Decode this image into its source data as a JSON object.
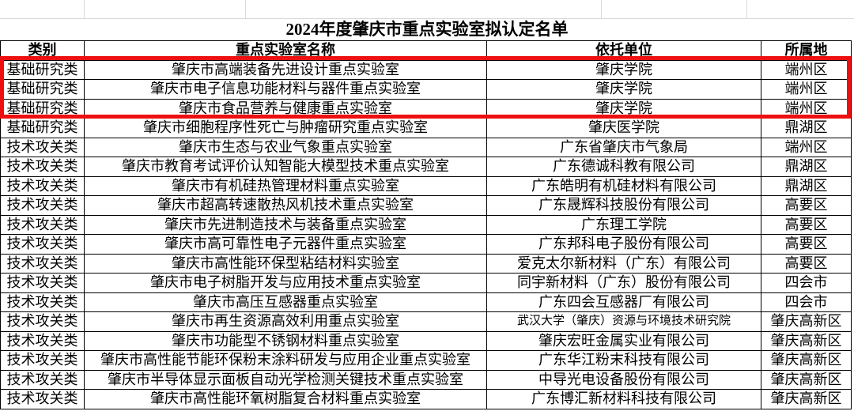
{
  "title": "2024年度肇庆市重点实验室拟认定名单",
  "columns": [
    "类别",
    "重点实验室名称",
    "依托单位",
    "所属地"
  ],
  "rows": [
    {
      "category": "基础研究类",
      "name": "肇庆市高端装备先进设计重点实验室",
      "unit": "肇庆学院",
      "location": "端州区"
    },
    {
      "category": "基础研究类",
      "name": "肇庆市电子信息功能材料与器件重点实验室",
      "unit": "肇庆学院",
      "location": "端州区"
    },
    {
      "category": "基础研究类",
      "name": "肇庆市食品营养与健康重点实验室",
      "unit": "肇庆学院",
      "location": "端州区"
    },
    {
      "category": "基础研究类",
      "name": "肇庆市细胞程序性死亡与肿瘤研究重点实验室",
      "unit": "肇庆医学院",
      "location": "鼎湖区"
    },
    {
      "category": "技术攻关类",
      "name": "肇庆市生态与农业气象重点实验室",
      "unit": "广东省肇庆市气象局",
      "location": "端州区"
    },
    {
      "category": "技术攻关类",
      "name": "肇庆市教育考试评价认知智能大模型技术重点实验室",
      "unit": "广东德诚科教有限公司",
      "location": "鼎湖区"
    },
    {
      "category": "技术攻关类",
      "name": "肇庆市有机硅热管理材料重点实验室",
      "unit": "广东皓明有机硅材料有限公司",
      "location": "鼎湖区"
    },
    {
      "category": "技术攻关类",
      "name": "肇庆市超高转速散热风机技术重点实验室",
      "unit": "广东晟辉科技股份有限公司",
      "location": "高要区"
    },
    {
      "category": "技术攻关类",
      "name": "肇庆市先进制造技术与装备重点实验室",
      "unit": "广东理工学院",
      "location": "高要区"
    },
    {
      "category": "技术攻关类",
      "name": "肇庆市高可靠性电子元器件重点实验室",
      "unit": "广东邦科电子股份有限公司",
      "location": "高要区"
    },
    {
      "category": "技术攻关类",
      "name": "肇庆市高性能环保型粘结材料实验室",
      "unit": "爱克太尔新材料（广东）有限公司",
      "location": "高要区"
    },
    {
      "category": "技术攻关类",
      "name": "肇庆市电子树脂开发与应用技术重点实验室",
      "unit": "同宇新材料（广东）股份有限公司",
      "location": "四会市"
    },
    {
      "category": "技术攻关类",
      "name": "肇庆市高压互感器重点实验室",
      "unit": "广东四会互感器厂有限公司",
      "location": "四会市"
    },
    {
      "category": "技术攻关类",
      "name": "肇庆市再生资源高效利用重点实验室",
      "unit": "武汉大学（肇庆）资源与环境技术研究院",
      "location": "肇庆高新区"
    },
    {
      "category": "技术攻关类",
      "name": "肇庆市功能型不锈钢材料重点实验室",
      "unit": "肇庆宏旺金属实业有限公司",
      "location": "肇庆高新区"
    },
    {
      "category": "技术攻关类",
      "name": "肇庆市高性能节能环保粉末涂料研发与应用企业重点实验室",
      "unit": "广东华江粉末科技有限公司",
      "location": "肇庆高新区"
    },
    {
      "category": "技术攻关类",
      "name": "肇庆市半导体显示面板自动光学检测关键技术重点实验室",
      "unit": "中导光电设备股份有限公司",
      "location": "肇庆高新区"
    },
    {
      "category": "技术攻关类",
      "name": "肇庆市高性能环氧树脂复合材料重点实验室",
      "unit": "广东博汇新材料科技有限公司",
      "location": "肇庆高新区"
    }
  ],
  "highlight": {
    "description": "red rectangle around first three data rows",
    "row_start": 1,
    "row_end": 3,
    "color": "#ee1010"
  },
  "colors": {
    "background": "#ffffff",
    "text": "#000000",
    "table_border": "#000000",
    "grid_line": "#d9d9d9",
    "highlight_border": "#ee1010"
  }
}
